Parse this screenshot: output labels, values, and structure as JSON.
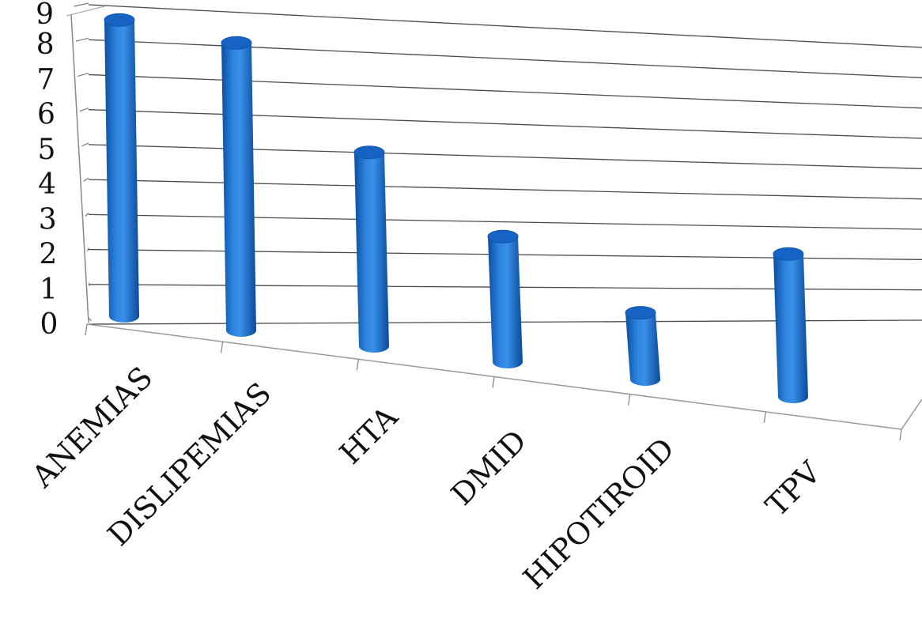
{
  "chart_data": {
    "type": "bar",
    "title": "",
    "xlabel": "",
    "ylabel": "",
    "categories": [
      "ANEMIAS",
      "DISLIPEMIAS",
      "HTA",
      "DMID",
      "HIPOTIROID",
      "TPV"
    ],
    "values": [
      9,
      9,
      6,
      4,
      2,
      4
    ],
    "ylim": [
      0,
      9
    ],
    "yticks": [
      "0",
      "1",
      "2",
      "3",
      "4",
      "5",
      "6",
      "7",
      "8",
      "9"
    ],
    "grid": true,
    "legend": "none",
    "style": "3d-cylinder",
    "colors": {
      "bar": "#1f6fd0",
      "bar_dark": "#0a4ea6",
      "bar_light": "#4d9be8",
      "gridline": "#333333"
    }
  }
}
